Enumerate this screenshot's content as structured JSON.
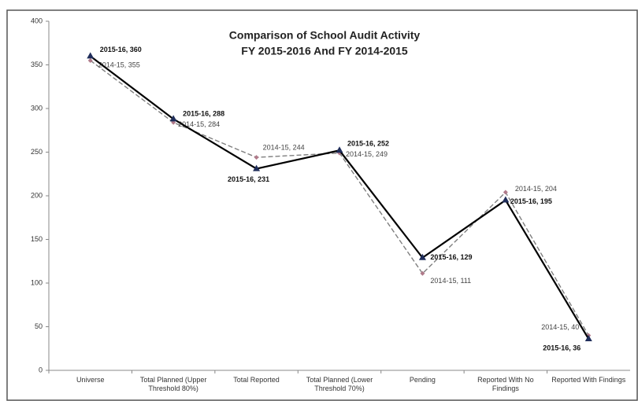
{
  "chart_data": {
    "type": "line",
    "title": "Comparison of School Audit Activity",
    "subtitle": "FY 2015-2016 And FY 2014-2015",
    "categories": [
      "Universe",
      "Total Planned (Upper Threshold 80%)",
      "Total Reported",
      "Total Planned (Lower Threshold 70%)",
      "Pending",
      "Reported With No Findings",
      "Reported With Findings"
    ],
    "series": [
      {
        "name": "2015-16",
        "color": "#000000",
        "values": [
          360,
          288,
          231,
          252,
          129,
          195,
          36
        ],
        "value_labels": [
          "2015-16, 360",
          "2015-16, 288",
          "2015-16, 231",
          "2015-16, 252",
          "2015-16, 129",
          "2015-16, 195",
          "2015-16, 36"
        ]
      },
      {
        "name": "2014-15",
        "color": "#7f7f7f",
        "values": [
          355,
          284,
          244,
          249,
          111,
          204,
          40
        ],
        "value_labels": [
          "2014-15, 355",
          "2014-15, 284",
          "2014-15, 244",
          "2014-15, 249",
          "2014-15, 111",
          "2014-15, 204",
          "2014-15, 40"
        ]
      }
    ],
    "ylim": [
      0,
      400
    ],
    "yticks": [
      0,
      50,
      100,
      150,
      200,
      250,
      300,
      350,
      400
    ],
    "grid": false
  }
}
